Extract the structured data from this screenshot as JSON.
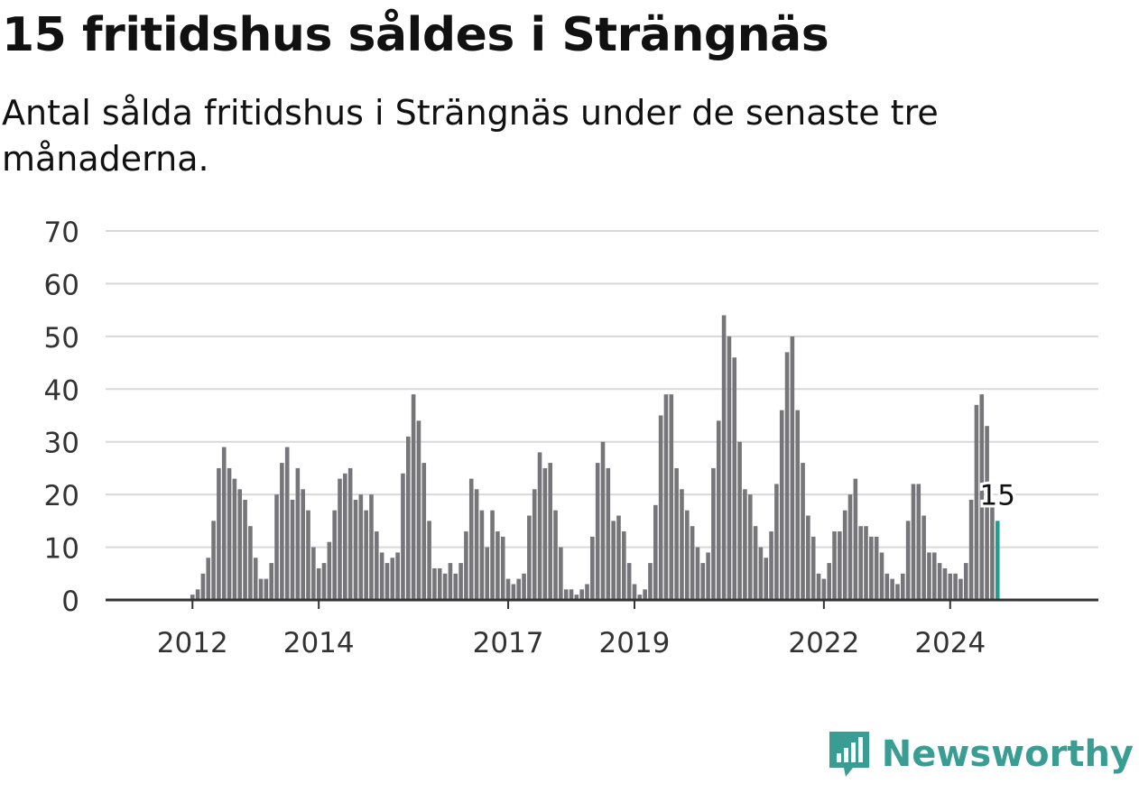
{
  "title": "15 fritidshus såldes i Strängnäs",
  "subtitle": "Antal sålda fritidshus i Strängnäs under de senaste tre månaderna.",
  "brand": {
    "name": "Newsworthy",
    "icon": "newsworthy-logo-icon",
    "color": "#3a9d94"
  },
  "colors": {
    "bar": "#76757a",
    "highlight": "#1f9e94",
    "grid": "#d9d9d9",
    "axis": "#333333",
    "text": "#333333"
  },
  "chart_data": {
    "type": "bar",
    "title": "15 fritidshus såldes i Strängnäs",
    "xlabel": "",
    "ylabel": "",
    "ylim": [
      0,
      70
    ],
    "yticks": [
      0,
      10,
      20,
      30,
      40,
      50,
      60,
      70
    ],
    "x_tick_labels": [
      {
        "label": "2012",
        "date": "2012-01"
      },
      {
        "label": "2014",
        "date": "2014-01"
      },
      {
        "label": "2017",
        "date": "2017-01"
      },
      {
        "label": "2019",
        "date": "2019-01"
      },
      {
        "label": "2022",
        "date": "2022-01"
      },
      {
        "label": "2024",
        "date": "2024-01"
      }
    ],
    "start_month": "2011-01",
    "grid": true,
    "highlight_label": "15",
    "values": [
      0,
      0,
      0,
      0,
      0,
      0,
      0,
      0,
      0,
      0,
      0,
      0,
      1,
      2,
      5,
      8,
      15,
      25,
      29,
      25,
      23,
      21,
      19,
      14,
      8,
      4,
      4,
      7,
      20,
      26,
      29,
      19,
      25,
      21,
      17,
      10,
      6,
      7,
      11,
      17,
      23,
      24,
      25,
      19,
      20,
      17,
      20,
      13,
      9,
      7,
      8,
      9,
      24,
      31,
      39,
      34,
      26,
      15,
      6,
      6,
      5,
      7,
      5,
      7,
      13,
      23,
      21,
      17,
      10,
      17,
      13,
      12,
      4,
      3,
      4,
      5,
      16,
      21,
      28,
      25,
      26,
      17,
      10,
      2,
      2,
      1,
      2,
      3,
      12,
      26,
      30,
      25,
      15,
      16,
      13,
      7,
      3,
      1,
      2,
      7,
      18,
      35,
      39,
      39,
      25,
      21,
      17,
      14,
      10,
      7,
      9,
      25,
      34,
      54,
      50,
      46,
      30,
      21,
      20,
      14,
      10,
      8,
      13,
      22,
      36,
      47,
      50,
      36,
      26,
      16,
      12,
      5,
      4,
      7,
      13,
      13,
      17,
      20,
      23,
      14,
      14,
      12,
      12,
      9,
      5,
      4,
      3,
      5,
      15,
      22,
      22,
      16,
      9,
      9,
      7,
      6,
      5,
      5,
      4,
      7,
      19,
      37,
      39,
      33,
      18,
      15
    ]
  }
}
